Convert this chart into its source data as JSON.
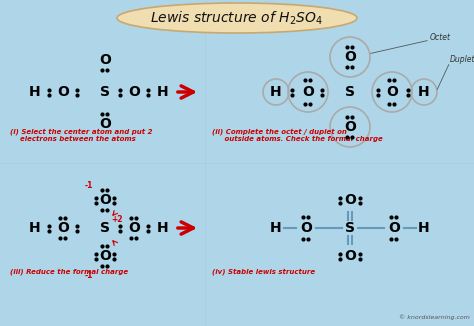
{
  "bg_color": "#aed6e8",
  "title_bg": "#f0ddb0",
  "title_color": "#111111",
  "arrow_color": "#cc0000",
  "text_color": "#111111",
  "red_color": "#cc0000",
  "bond_color": "#6699bb",
  "circle_color": "#aaaaaa",
  "panel_i_caption": "(i) Select the center atom and put 2\n    electrons between the atoms",
  "panel_ii_caption": "(ii) Complete the octet / duplet on\n     outside atoms. Check the formal charge",
  "panel_iii_caption": "(iii) Reduce the formal charge",
  "panel_iv_caption": "(iv) Stable lewis structure",
  "watermark": "© knordslearning.com"
}
